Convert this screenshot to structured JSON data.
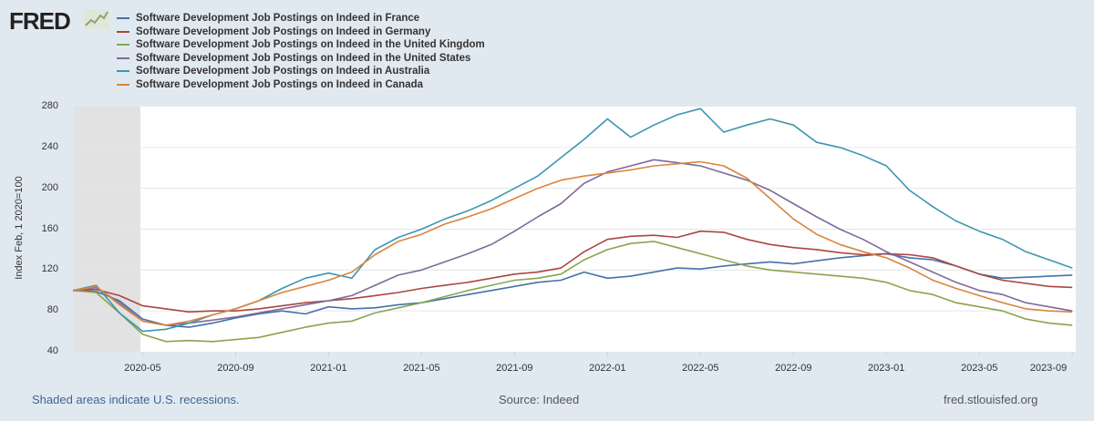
{
  "header": {
    "logo_text": "FRED"
  },
  "colors": {
    "background": "#e1e9f0",
    "recession": "#e2e2e2",
    "grid": "#e6e6e6"
  },
  "chart_data": {
    "type": "line",
    "title": "",
    "ylabel": "Index Feb, 1 2020=100",
    "xlabel": "",
    "ylim": [
      40,
      280
    ],
    "yticks": [
      "280",
      "240",
      "200",
      "160",
      "120",
      "80",
      "40"
    ],
    "ytick_values": [
      280,
      240,
      200,
      160,
      120,
      80,
      40
    ],
    "xticks": [
      "2020-05",
      "2020-09",
      "2021-01",
      "2021-05",
      "2021-09",
      "2022-01",
      "2022-05",
      "2022-09",
      "2023-01",
      "2023-05",
      "2023-09"
    ],
    "xtick_month_index": [
      3,
      7,
      11,
      15,
      19,
      23,
      27,
      31,
      35,
      39,
      43
    ],
    "x": [
      "2020-02",
      "2020-03",
      "2020-04",
      "2020-05",
      "2020-06",
      "2020-07",
      "2020-08",
      "2020-09",
      "2020-10",
      "2020-11",
      "2020-12",
      "2021-01",
      "2021-02",
      "2021-03",
      "2021-04",
      "2021-05",
      "2021-06",
      "2021-07",
      "2021-08",
      "2021-09",
      "2021-10",
      "2021-11",
      "2021-12",
      "2022-01",
      "2022-02",
      "2022-03",
      "2022-04",
      "2022-05",
      "2022-06",
      "2022-07",
      "2022-08",
      "2022-09",
      "2022-10",
      "2022-11",
      "2022-12",
      "2023-01",
      "2023-02",
      "2023-03",
      "2023-04",
      "2023-05",
      "2023-06",
      "2023-07",
      "2023-08",
      "2023-09"
    ],
    "recession": {
      "start": "2020-02",
      "end": "2020-04"
    },
    "grid": true,
    "legend_position": "top-left",
    "series": [
      {
        "name": "Software Development Job Postings on Indeed in France",
        "color": "#4572a7",
        "values": [
          100,
          99,
          90,
          72,
          66,
          64,
          68,
          73,
          77,
          80,
          77,
          84,
          82,
          83,
          86,
          88,
          92,
          96,
          100,
          104,
          108,
          110,
          118,
          112,
          114,
          118,
          122,
          121,
          124,
          126,
          128,
          126,
          129,
          132,
          134,
          136,
          132,
          130,
          124,
          116,
          112,
          113,
          114,
          115
        ]
      },
      {
        "name": "Software Development Job Postings on Indeed in Germany",
        "color": "#aa4643",
        "values": [
          100,
          101,
          95,
          85,
          82,
          79,
          80,
          80,
          82,
          85,
          88,
          90,
          92,
          95,
          98,
          102,
          105,
          108,
          112,
          116,
          118,
          122,
          138,
          150,
          153,
          154,
          152,
          158,
          157,
          150,
          145,
          142,
          140,
          137,
          135,
          136,
          135,
          132,
          124,
          116,
          110,
          107,
          104,
          103
        ]
      },
      {
        "name": "Software Development Job Postings on Indeed in the United Kingdom",
        "color": "#89a54e",
        "values": [
          100,
          98,
          78,
          57,
          50,
          51,
          50,
          52,
          54,
          59,
          64,
          68,
          70,
          78,
          83,
          88,
          94,
          100,
          105,
          110,
          112,
          116,
          130,
          140,
          146,
          148,
          142,
          136,
          130,
          124,
          120,
          118,
          116,
          114,
          112,
          108,
          100,
          96,
          88,
          84,
          80,
          72,
          68,
          66
        ]
      },
      {
        "name": "Software Development Job Postings on Indeed in the United States",
        "color": "#80699b",
        "values": [
          100,
          103,
          88,
          70,
          66,
          68,
          71,
          74,
          78,
          82,
          86,
          90,
          95,
          105,
          115,
          120,
          128,
          136,
          145,
          158,
          172,
          185,
          205,
          216,
          222,
          228,
          225,
          222,
          215,
          208,
          198,
          185,
          172,
          160,
          150,
          138,
          128,
          118,
          108,
          100,
          96,
          88,
          84,
          80
        ]
      },
      {
        "name": "Software Development Job Postings on Indeed in Australia",
        "color": "#3d96ae",
        "values": [
          100,
          105,
          78,
          60,
          62,
          68,
          76,
          82,
          90,
          102,
          112,
          117,
          112,
          140,
          152,
          160,
          170,
          178,
          188,
          200,
          212,
          230,
          248,
          268,
          250,
          262,
          272,
          278,
          255,
          262,
          268,
          262,
          245,
          240,
          232,
          222,
          198,
          182,
          168,
          158,
          150,
          138,
          130,
          122
        ]
      },
      {
        "name": "Software Development Job Postings on Indeed in Canada",
        "color": "#db843d",
        "values": [
          100,
          104,
          86,
          70,
          66,
          70,
          76,
          82,
          90,
          98,
          104,
          110,
          118,
          135,
          148,
          155,
          165,
          172,
          180,
          190,
          200,
          208,
          212,
          215,
          218,
          222,
          224,
          226,
          222,
          210,
          190,
          170,
          155,
          145,
          138,
          132,
          122,
          110,
          102,
          95,
          88,
          82,
          80,
          79
        ]
      }
    ]
  },
  "footer": {
    "recession_note": "Shaded areas indicate U.S. recessions.",
    "source": "Source: Indeed",
    "site": "fred.stlouisfed.org"
  }
}
